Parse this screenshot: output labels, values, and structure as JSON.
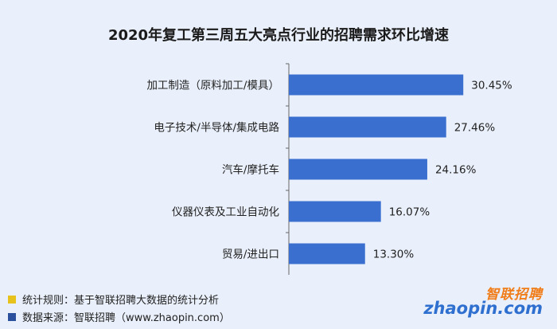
{
  "chart_data": {
    "type": "bar",
    "orientation": "horizontal",
    "title": "2020年复工第三周五大亮点行业的招聘需求环比增速",
    "categories": [
      "加工制造（原料加工/模具）",
      "电子技术/半导体/集成电路",
      "汽车/摩托车",
      "仪器仪表及工业自动化",
      "贸易/进出口"
    ],
    "values": [
      30.45,
      27.46,
      24.16,
      16.07,
      13.3
    ],
    "value_labels": [
      "30.45%",
      "27.46%",
      "24.16%",
      "16.07%",
      "13.30%"
    ],
    "xlim": [
      0,
      35
    ],
    "grid": false,
    "bar_color": "#3a6fd0"
  },
  "footer": {
    "rule_text": "统计规则：基于智联招聘大数据的统计分析",
    "source_text": "数据来源：智联招聘（www.zhaopin.com）",
    "rule_marker_color": "#e8c21c",
    "source_marker_color": "#2a4f9c"
  },
  "logo": {
    "cn_text": "智联招聘",
    "en_text": "zhaopin.com"
  },
  "colors": {
    "background": "#eaf0fb",
    "axis": "#666666"
  }
}
